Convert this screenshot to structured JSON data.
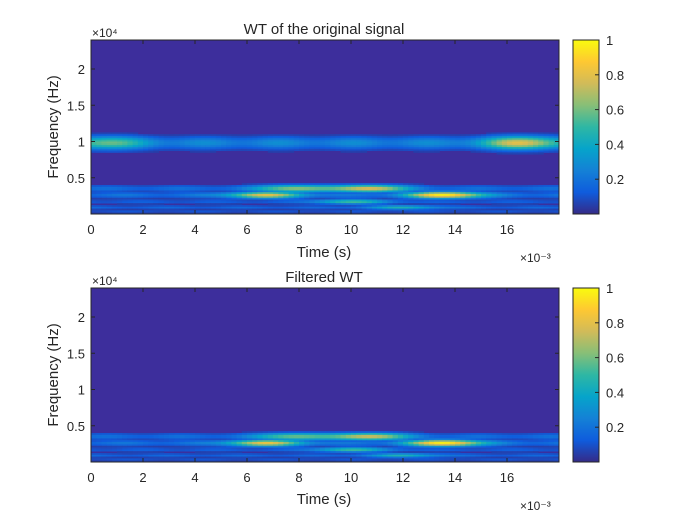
{
  "chart_data": [
    {
      "type": "heatmap",
      "title": "WT of the original signal",
      "xlabel": "Time (s)",
      "ylabel": "Frequency (Hz)",
      "x_exponent": "×10⁻³",
      "y_exponent": "×10⁴",
      "xlim": [
        0,
        0.018
      ],
      "ylim": [
        0,
        24000
      ],
      "xticks": [
        0,
        0.002,
        0.004,
        0.006,
        0.008,
        0.01,
        0.012,
        0.014,
        0.016
      ],
      "xticklabels": [
        "0",
        "2",
        "4",
        "6",
        "8",
        "10",
        "12",
        "14",
        "16"
      ],
      "yticks": [
        5000,
        10000,
        15000,
        20000
      ],
      "yticklabels": [
        "0.5",
        "1",
        "1.5",
        "2"
      ],
      "colormap": "parula",
      "colorbar": {
        "limits": [
          0,
          1
        ],
        "ticks": [
          0.2,
          0.4,
          0.6,
          0.8,
          1
        ],
        "ticklabels": [
          "0.2",
          "0.4",
          "0.6",
          "0.8",
          "1"
        ]
      },
      "bands": [
        {
          "freq": 9800,
          "width": 900,
          "level": 0.3,
          "peaks": [
            {
              "t": 0.0166,
              "level": 0.55
            },
            {
              "t": 0.0005,
              "level": 0.35
            }
          ]
        },
        {
          "freq": 3500,
          "width": 500,
          "level": 0.2,
          "peaks": [
            {
              "t": 0.0107,
              "level": 0.65
            },
            {
              "t": 0.0078,
              "level": 0.5
            }
          ]
        },
        {
          "freq": 2600,
          "width": 450,
          "level": 0.22,
          "peaks": [
            {
              "t": 0.0136,
              "level": 0.8
            },
            {
              "t": 0.0067,
              "level": 0.6
            }
          ]
        },
        {
          "freq": 1700,
          "width": 350,
          "level": 0.15,
          "peaks": [
            {
              "t": 0.01,
              "level": 0.4
            }
          ]
        },
        {
          "freq": 900,
          "width": 300,
          "level": 0.17,
          "peaks": [
            {
              "t": 0.012,
              "level": 0.3
            }
          ]
        },
        {
          "freq": 300,
          "width": 250,
          "level": 0.12,
          "peaks": []
        }
      ]
    },
    {
      "type": "heatmap",
      "title": "Filtered WT",
      "xlabel": "Time (s)",
      "ylabel": "Frequency (Hz)",
      "x_exponent": "×10⁻³",
      "y_exponent": "×10⁴",
      "xlim": [
        0,
        0.018
      ],
      "ylim": [
        0,
        24000
      ],
      "xticks": [
        0,
        0.002,
        0.004,
        0.006,
        0.008,
        0.01,
        0.012,
        0.014,
        0.016
      ],
      "xticklabels": [
        "0",
        "2",
        "4",
        "6",
        "8",
        "10",
        "12",
        "14",
        "16"
      ],
      "yticks": [
        5000,
        10000,
        15000,
        20000
      ],
      "yticklabels": [
        "0.5",
        "1",
        "1.5",
        "2"
      ],
      "colormap": "parula",
      "colorbar": {
        "limits": [
          0,
          1
        ],
        "ticks": [
          0.2,
          0.4,
          0.6,
          0.8,
          1
        ],
        "ticklabels": [
          "0.2",
          "0.4",
          "0.6",
          "0.8",
          "1"
        ]
      },
      "bands": [
        {
          "freq": 3500,
          "width": 500,
          "level": 0.2,
          "peaks": [
            {
              "t": 0.0107,
              "level": 0.62
            },
            {
              "t": 0.0078,
              "level": 0.45
            }
          ]
        },
        {
          "freq": 2600,
          "width": 450,
          "level": 0.22,
          "peaks": [
            {
              "t": 0.0136,
              "level": 0.8
            },
            {
              "t": 0.0067,
              "level": 0.62
            }
          ]
        },
        {
          "freq": 1700,
          "width": 350,
          "level": 0.15,
          "peaks": [
            {
              "t": 0.01,
              "level": 0.4
            }
          ]
        },
        {
          "freq": 900,
          "width": 300,
          "level": 0.17,
          "peaks": [
            {
              "t": 0.012,
              "level": 0.3
            }
          ]
        },
        {
          "freq": 300,
          "width": 250,
          "level": 0.12,
          "peaks": []
        }
      ]
    }
  ]
}
